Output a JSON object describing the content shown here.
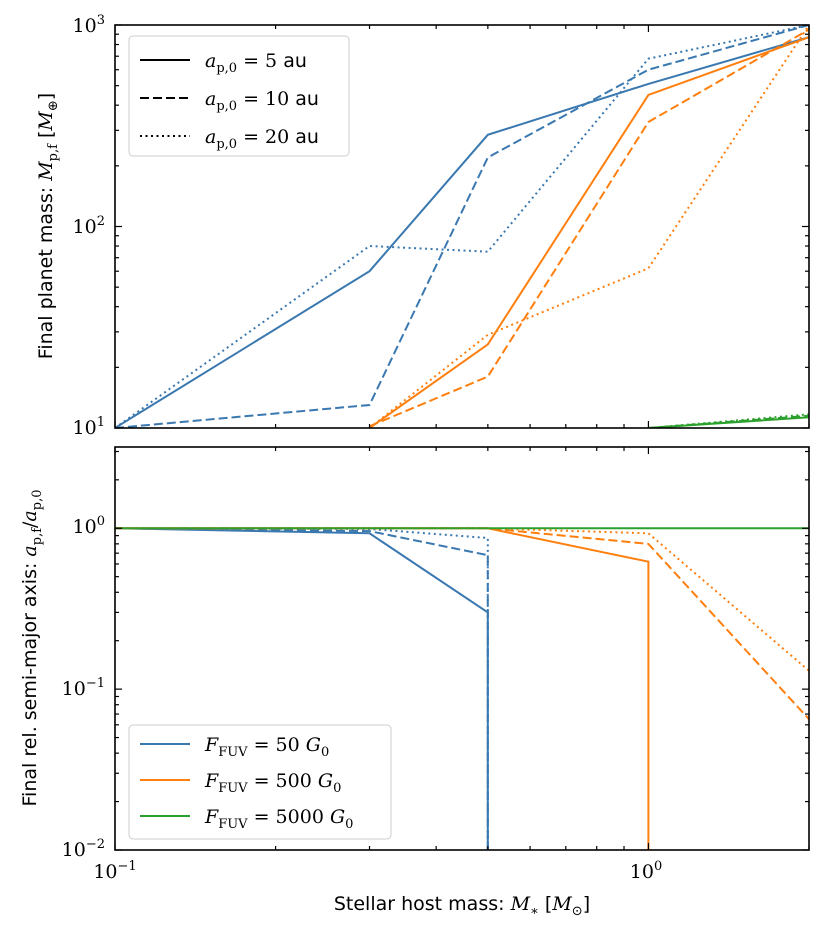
{
  "chart_data": [
    {
      "type": "line",
      "panel": "top",
      "ylabel": "Final planet mass: M_p,f [M_⊕]",
      "xscale": "log",
      "yscale": "log",
      "xlim": [
        0.1,
        2.0
      ],
      "ylim": [
        10,
        1000
      ],
      "yticks": [
        10,
        100,
        1000
      ],
      "ytick_labels": [
        "10^1",
        "10^2",
        "10^3"
      ],
      "legend": {
        "placement": "upper-left",
        "entries": [
          {
            "style": "solid",
            "label": "a_p,0 = 5 au"
          },
          {
            "style": "dashed",
            "label": "a_p,0 = 10 au"
          },
          {
            "style": "dotted",
            "label": "a_p,0 = 20 au"
          }
        ]
      },
      "series": [
        {
          "name": "50 G0, 5 au",
          "color": "#3a78b0",
          "style": "solid",
          "x": [
            0.1,
            0.3,
            0.5,
            1.0,
            2.0
          ],
          "y": [
            10,
            60,
            285,
            510,
            870
          ]
        },
        {
          "name": "50 G0, 10 au",
          "color": "#3a78b0",
          "style": "dashed",
          "x": [
            0.1,
            0.3,
            0.5,
            1.0,
            2.0
          ],
          "y": [
            10,
            13,
            220,
            600,
            1000
          ]
        },
        {
          "name": "50 G0, 20 au",
          "color": "#3a78b0",
          "style": "dotted",
          "x": [
            0.1,
            0.3,
            0.5,
            1.0,
            2.0
          ],
          "y": [
            10,
            80,
            75,
            680,
            1000
          ]
        },
        {
          "name": "500 G0, 5 au",
          "color": "#ff7f0e",
          "style": "solid",
          "x": [
            0.3,
            0.5,
            1.0,
            2.0
          ],
          "y": [
            10,
            26,
            450,
            870
          ]
        },
        {
          "name": "500 G0, 10 au",
          "color": "#ff7f0e",
          "style": "dashed",
          "x": [
            0.3,
            0.5,
            1.0,
            2.0
          ],
          "y": [
            10.2,
            18,
            330,
            950
          ]
        },
        {
          "name": "500 G0, 20 au",
          "color": "#ff7f0e",
          "style": "dotted",
          "x": [
            0.3,
            0.5,
            1.0,
            2.0
          ],
          "y": [
            10,
            29,
            62,
            1000
          ]
        },
        {
          "name": "5000 G0, 5 au",
          "color": "#2ca02c",
          "style": "solid",
          "x": [
            1.0,
            2.0
          ],
          "y": [
            10,
            11.3
          ]
        },
        {
          "name": "5000 G0, 10 au",
          "color": "#2ca02c",
          "style": "dashed",
          "x": [
            1.0,
            2.0
          ],
          "y": [
            10,
            11.5
          ]
        },
        {
          "name": "5000 G0, 20 au",
          "color": "#2ca02c",
          "style": "dotted",
          "x": [
            1.0,
            2.0
          ],
          "y": [
            10,
            11.7
          ]
        }
      ]
    },
    {
      "type": "line",
      "panel": "bottom",
      "xlabel": "Stellar host mass: M_* [M_⊙]",
      "ylabel": "Final rel. semi-major axis: a_p,f / a_p,0",
      "xscale": "log",
      "yscale": "log",
      "xlim": [
        0.1,
        2.0
      ],
      "ylim": [
        0.01,
        3.2
      ],
      "xticks": [
        0.1,
        1.0
      ],
      "xtick_labels": [
        "10^-1",
        "10^0"
      ],
      "yticks": [
        0.01,
        0.1,
        1.0
      ],
      "ytick_labels": [
        "10^-2",
        "10^-1",
        "10^0"
      ],
      "legend": {
        "placement": "lower-left",
        "entries": [
          {
            "color": "#3a78b0",
            "label": "F_FUV = 50 G_0"
          },
          {
            "color": "#ff7f0e",
            "label": "F_FUV = 500 G_0"
          },
          {
            "color": "#2ca02c",
            "label": "F_FUV = 5000 G_0"
          }
        ]
      },
      "series": [
        {
          "name": "50 G0, 5 au",
          "color": "#3a78b0",
          "style": "solid",
          "x": [
            0.1,
            0.3,
            0.5,
            0.5
          ],
          "y": [
            1.0,
            0.93,
            0.3,
            0.01
          ]
        },
        {
          "name": "50 G0, 10 au",
          "color": "#3a78b0",
          "style": "dashed",
          "x": [
            0.1,
            0.3,
            0.5,
            0.5
          ],
          "y": [
            1.0,
            0.96,
            0.68,
            0.01
          ]
        },
        {
          "name": "50 G0, 20 au",
          "color": "#3a78b0",
          "style": "dotted",
          "x": [
            0.1,
            0.3,
            0.5,
            0.5
          ],
          "y": [
            1.0,
            0.99,
            0.87,
            0.01
          ]
        },
        {
          "name": "500 G0, 5 au",
          "color": "#ff7f0e",
          "style": "solid",
          "x": [
            0.1,
            0.5,
            1.0,
            1.0
          ],
          "y": [
            1.0,
            1.0,
            0.62,
            0.01
          ]
        },
        {
          "name": "500 G0, 10 au",
          "color": "#ff7f0e",
          "style": "dashed",
          "x": [
            0.1,
            0.5,
            1.0,
            2.0
          ],
          "y": [
            1.0,
            1.0,
            0.8,
            0.065
          ]
        },
        {
          "name": "500 G0, 20 au",
          "color": "#ff7f0e",
          "style": "dotted",
          "x": [
            0.1,
            0.5,
            1.0,
            2.0
          ],
          "y": [
            1.0,
            1.0,
            0.93,
            0.13
          ]
        },
        {
          "name": "5000 G0",
          "color": "#2ca02c",
          "style": "solid",
          "x": [
            0.1,
            2.0
          ],
          "y": [
            1.0,
            1.0
          ]
        }
      ]
    }
  ]
}
